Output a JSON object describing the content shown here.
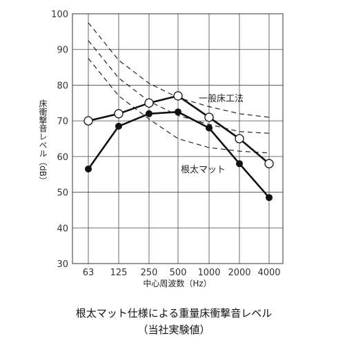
{
  "chart_data": {
    "type": "line",
    "x": [
      "63",
      "125",
      "250",
      "500",
      "1000",
      "2000",
      "4000"
    ],
    "ylim": [
      30,
      100
    ],
    "yticks": [
      30,
      40,
      50,
      60,
      70,
      80,
      90,
      100
    ],
    "grid": true,
    "xlabel": "中心周波数（Hz）",
    "ylabel": "床衝撃音レベル（dB）",
    "title": "根太マット仕様による重量床衝撃音レベル",
    "subtitle": "（当社実験値）",
    "series": [
      {
        "name": "一般床工法",
        "marker": "open-circle",
        "values": [
          70,
          72,
          75,
          77,
          71,
          65,
          58
        ]
      },
      {
        "name": "根太マット",
        "marker": "filled-circle",
        "values": [
          56.5,
          68.5,
          72,
          72.5,
          68,
          58,
          48.5
        ]
      }
    ],
    "reference_curves": [
      {
        "values": [
          97.5,
          87,
          80.5,
          76.5,
          74,
          72,
          71
        ]
      },
      {
        "values": [
          92.5,
          82,
          75.5,
          71.5,
          69,
          67,
          66.5
        ]
      },
      {
        "values": [
          87.5,
          77,
          70.5,
          65,
          62.5,
          61.5,
          61
        ]
      }
    ]
  },
  "colors": {
    "line": "#111111",
    "grid": "#444444",
    "reference": "#222222"
  }
}
